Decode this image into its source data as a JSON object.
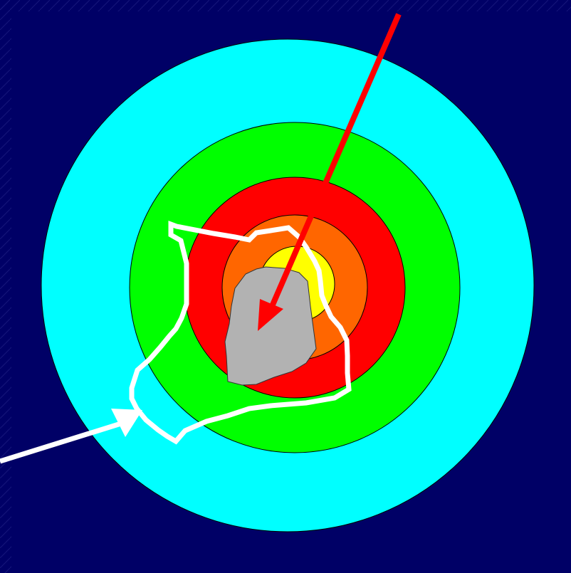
{
  "diagram": {
    "background_color": "#000066",
    "rings": [
      {
        "name": "outer-zone",
        "color": "#00FFFF"
      },
      {
        "name": "green-zone",
        "color": "#00FF00"
      },
      {
        "name": "red-zone",
        "color": "#FF0000"
      },
      {
        "name": "orange-zone",
        "color": "#FF6600"
      },
      {
        "name": "yellow-zone",
        "color": "#FFFF00"
      }
    ],
    "core_shape_color": "#B2B2B2",
    "inbound_arrow_color": "#FF0000",
    "path_arrow_color": "#FFFFFF"
  }
}
